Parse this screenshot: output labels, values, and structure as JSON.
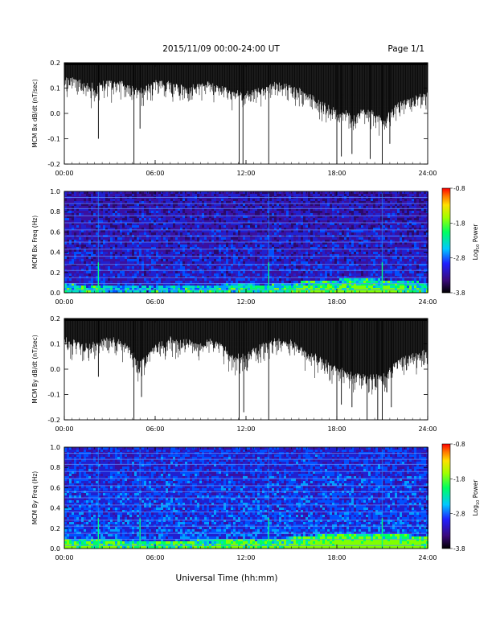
{
  "header": {
    "title": "2015/11/09  00:00-24:00 UT",
    "page": "Page 1/1"
  },
  "xlabel": "Universal Time (hh:mm)",
  "x_ticks": [
    "00:00",
    "06:00",
    "12:00",
    "18:00",
    "24:00"
  ],
  "colorbar": {
    "label": "Log10 Power",
    "label_base": "Log",
    "label_sub": "10",
    "label_rest": " Power",
    "ticks": [
      "-0.8",
      "-1.8",
      "-2.8",
      "-3.8"
    ],
    "range": [
      -3.8,
      -0.8
    ]
  },
  "colors": {
    "trace": "#000000",
    "spectrogram_bg": "#2a0a6a",
    "horizontal_lines": "#5a8cff",
    "vertical_event": "#00ff80"
  },
  "chart_data": [
    {
      "type": "line",
      "ylabel": "MCM Bx dB/dt (nT/sec)",
      "ylim": [
        -0.2,
        0.2
      ],
      "y_ticks": [
        "0.2",
        "0.1",
        "0.0",
        "-0.1",
        "-0.2"
      ],
      "xlim_hours": [
        0,
        24
      ],
      "baseline": 0.2,
      "envelope": [
        {
          "x": 0.0,
          "y": 0.14
        },
        {
          "x": 1.0,
          "y": 0.13
        },
        {
          "x": 2.0,
          "y": 0.11
        },
        {
          "x": 3.0,
          "y": 0.13
        },
        {
          "x": 4.0,
          "y": 0.12
        },
        {
          "x": 5.0,
          "y": 0.09
        },
        {
          "x": 6.0,
          "y": 0.13
        },
        {
          "x": 7.0,
          "y": 0.12
        },
        {
          "x": 8.0,
          "y": 0.1
        },
        {
          "x": 9.0,
          "y": 0.12
        },
        {
          "x": 10.0,
          "y": 0.12
        },
        {
          "x": 11.0,
          "y": 0.09
        },
        {
          "x": 12.0,
          "y": 0.08
        },
        {
          "x": 13.0,
          "y": 0.1
        },
        {
          "x": 14.0,
          "y": 0.12
        },
        {
          "x": 15.0,
          "y": 0.11
        },
        {
          "x": 16.0,
          "y": 0.08
        },
        {
          "x": 17.0,
          "y": 0.04
        },
        {
          "x": 18.0,
          "y": 0.02
        },
        {
          "x": 19.0,
          "y": 0.0
        },
        {
          "x": 20.0,
          "y": 0.02
        },
        {
          "x": 21.0,
          "y": -0.02
        },
        {
          "x": 22.0,
          "y": 0.04
        },
        {
          "x": 23.0,
          "y": 0.06
        },
        {
          "x": 24.0,
          "y": 0.08
        }
      ],
      "spikes": [
        {
          "x": 2.25,
          "y": -0.1
        },
        {
          "x": 4.6,
          "y": -0.2
        },
        {
          "x": 5.0,
          "y": -0.06
        },
        {
          "x": 11.55,
          "y": -0.2
        },
        {
          "x": 11.8,
          "y": -0.2
        },
        {
          "x": 13.5,
          "y": -0.2
        },
        {
          "x": 18.0,
          "y": -0.2
        },
        {
          "x": 18.3,
          "y": -0.17
        },
        {
          "x": 19.0,
          "y": -0.16
        },
        {
          "x": 20.2,
          "y": -0.18
        },
        {
          "x": 21.0,
          "y": -0.2
        },
        {
          "x": 21.5,
          "y": -0.12
        }
      ]
    },
    {
      "type": "heatmap",
      "ylabel": "MCM Bx Freq (Hz)",
      "ylim": [
        0.0,
        1.0
      ],
      "y_ticks": [
        "1.0",
        "0.8",
        "0.6",
        "0.4",
        "0.2",
        "0.0"
      ],
      "xlim_hours": [
        0,
        24
      ],
      "horizontal_lines_hz": [
        0.03,
        0.09,
        0.15,
        0.22,
        0.28,
        0.36,
        0.43,
        0.5,
        0.56,
        0.62,
        0.69,
        0.76,
        0.83,
        0.88,
        0.94,
        1.0
      ],
      "vertical_events_hours": [
        2.25,
        13.5,
        21.0
      ],
      "low_freq_activity": [
        {
          "x": 0,
          "level": 0.5
        },
        {
          "x": 2,
          "level": 0.4
        },
        {
          "x": 4,
          "level": 0.3
        },
        {
          "x": 6,
          "level": 0.3
        },
        {
          "x": 8,
          "level": 0.35
        },
        {
          "x": 10,
          "level": 0.4
        },
        {
          "x": 11.5,
          "level": 0.6
        },
        {
          "x": 13,
          "level": 0.4
        },
        {
          "x": 15,
          "level": 0.6
        },
        {
          "x": 17,
          "level": 0.8
        },
        {
          "x": 19,
          "level": 0.9
        },
        {
          "x": 21,
          "level": 0.85
        },
        {
          "x": 23,
          "level": 0.7
        },
        {
          "x": 24,
          "level": 0.6
        }
      ]
    },
    {
      "type": "line",
      "ylabel": "MCM By dB/dt (nT/sec)",
      "ylim": [
        -0.2,
        0.2
      ],
      "y_ticks": [
        "0.2",
        "0.1",
        "0.0",
        "-0.1",
        "-0.2"
      ],
      "xlim_hours": [
        0,
        24
      ],
      "baseline": 0.2,
      "envelope": [
        {
          "x": 0.0,
          "y": 0.12
        },
        {
          "x": 1.0,
          "y": 0.1
        },
        {
          "x": 2.0,
          "y": 0.1
        },
        {
          "x": 3.0,
          "y": 0.13
        },
        {
          "x": 4.0,
          "y": 0.1
        },
        {
          "x": 5.0,
          "y": 0.03
        },
        {
          "x": 6.0,
          "y": 0.1
        },
        {
          "x": 7.0,
          "y": 0.12
        },
        {
          "x": 8.0,
          "y": 0.11
        },
        {
          "x": 9.0,
          "y": 0.11
        },
        {
          "x": 10.0,
          "y": 0.12
        },
        {
          "x": 11.0,
          "y": 0.06
        },
        {
          "x": 12.0,
          "y": 0.06
        },
        {
          "x": 13.0,
          "y": 0.1
        },
        {
          "x": 14.0,
          "y": 0.12
        },
        {
          "x": 15.0,
          "y": 0.11
        },
        {
          "x": 16.0,
          "y": 0.07
        },
        {
          "x": 17.0,
          "y": 0.04
        },
        {
          "x": 18.0,
          "y": 0.01
        },
        {
          "x": 19.0,
          "y": -0.02
        },
        {
          "x": 20.0,
          "y": -0.02
        },
        {
          "x": 21.0,
          "y": -0.03
        },
        {
          "x": 22.0,
          "y": 0.04
        },
        {
          "x": 23.0,
          "y": 0.06
        },
        {
          "x": 24.0,
          "y": 0.07
        }
      ],
      "spikes": [
        {
          "x": 2.25,
          "y": -0.03
        },
        {
          "x": 4.6,
          "y": -0.2
        },
        {
          "x": 5.1,
          "y": -0.11
        },
        {
          "x": 11.55,
          "y": -0.2
        },
        {
          "x": 11.85,
          "y": -0.17
        },
        {
          "x": 13.5,
          "y": -0.2
        },
        {
          "x": 18.0,
          "y": -0.2
        },
        {
          "x": 18.3,
          "y": -0.14
        },
        {
          "x": 19.0,
          "y": -0.15
        },
        {
          "x": 20.0,
          "y": -0.2
        },
        {
          "x": 20.7,
          "y": -0.2
        },
        {
          "x": 21.0,
          "y": -0.2
        },
        {
          "x": 21.6,
          "y": -0.15
        }
      ]
    },
    {
      "type": "heatmap",
      "ylabel": "MCM By Freq (Hz)",
      "ylim": [
        0.0,
        1.0
      ],
      "y_ticks": [
        "1.0",
        "0.8",
        "0.6",
        "0.4",
        "0.2",
        "0.0"
      ],
      "xlim_hours": [
        0,
        24
      ],
      "horizontal_lines_hz": [
        0.03,
        0.09,
        0.15,
        0.22,
        0.28,
        0.36,
        0.43,
        0.5,
        0.56,
        0.62,
        0.69,
        0.76,
        0.83,
        0.88,
        0.94,
        1.0
      ],
      "vertical_events_hours": [
        2.25,
        5.0,
        13.5,
        21.0
      ],
      "low_freq_activity": [
        {
          "x": 0,
          "level": 0.6
        },
        {
          "x": 2,
          "level": 0.5
        },
        {
          "x": 4,
          "level": 0.45
        },
        {
          "x": 6,
          "level": 0.45
        },
        {
          "x": 8,
          "level": 0.45
        },
        {
          "x": 10,
          "level": 0.5
        },
        {
          "x": 11.5,
          "level": 0.65
        },
        {
          "x": 13,
          "level": 0.5
        },
        {
          "x": 15,
          "level": 0.7
        },
        {
          "x": 17,
          "level": 0.9
        },
        {
          "x": 19,
          "level": 1.0
        },
        {
          "x": 21,
          "level": 0.95
        },
        {
          "x": 23,
          "level": 0.85
        },
        {
          "x": 24,
          "level": 0.8
        }
      ]
    }
  ]
}
